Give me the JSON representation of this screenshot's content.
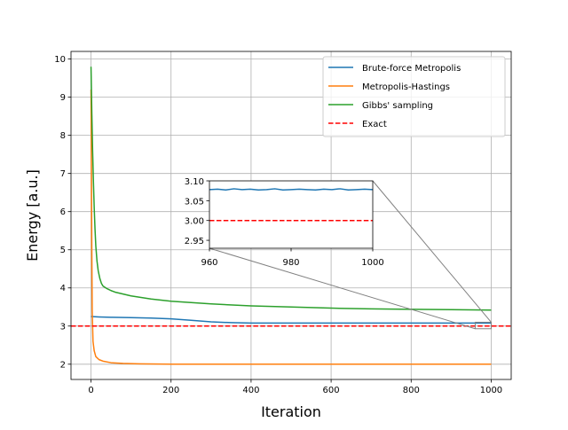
{
  "chart_data": {
    "type": "line",
    "xlabel": "Iteration",
    "ylabel": "Energy [a.u.]",
    "xlim": [
      -50,
      1050
    ],
    "ylim": [
      1.6,
      10.2
    ],
    "xticks": [
      "0",
      "200",
      "400",
      "600",
      "800",
      "1000"
    ],
    "yticks": [
      "2",
      "3",
      "4",
      "5",
      "6",
      "7",
      "8",
      "9",
      "10"
    ],
    "grid": true,
    "legend_position": "top-right",
    "series": [
      {
        "name": "Brute-force Metropolis",
        "color": "#1f77b4",
        "style": "solid",
        "x": [
          0,
          20,
          50,
          100,
          150,
          200,
          250,
          300,
          350,
          400,
          500,
          600,
          700,
          800,
          900,
          1000
        ],
        "y": [
          3.25,
          3.24,
          3.23,
          3.22,
          3.21,
          3.19,
          3.15,
          3.11,
          3.09,
          3.08,
          3.08,
          3.08,
          3.08,
          3.08,
          3.08,
          3.08
        ]
      },
      {
        "name": "Metropolis-Hastings",
        "color": "#ff7f0e",
        "style": "solid",
        "x": [
          0,
          1,
          2,
          3,
          5,
          8,
          12,
          20,
          30,
          50,
          80,
          120,
          200,
          400,
          600,
          800,
          1000
        ],
        "y": [
          9.2,
          7.2,
          5.0,
          3.4,
          2.6,
          2.35,
          2.2,
          2.12,
          2.08,
          2.04,
          2.02,
          2.01,
          2.0,
          2.0,
          2.0,
          2.0,
          2.0
        ]
      },
      {
        "name": "Gibbs' sampling",
        "color": "#2ca02c",
        "style": "solid",
        "x": [
          0,
          2,
          4,
          6,
          8,
          10,
          12,
          15,
          18,
          22,
          26,
          30,
          40,
          50,
          60,
          80,
          100,
          150,
          200,
          300,
          400,
          500,
          600,
          700,
          800,
          900,
          1000
        ],
        "y": [
          9.8,
          8.6,
          7.6,
          6.8,
          6.1,
          5.55,
          5.1,
          4.7,
          4.45,
          4.25,
          4.12,
          4.05,
          3.98,
          3.93,
          3.89,
          3.84,
          3.79,
          3.71,
          3.65,
          3.58,
          3.53,
          3.5,
          3.47,
          3.45,
          3.44,
          3.43,
          3.42
        ]
      },
      {
        "name": "Exact",
        "color": "#ff0000",
        "style": "dashed",
        "x": [
          -50,
          1050
        ],
        "y": [
          3.0,
          3.0
        ]
      }
    ],
    "inset": {
      "xlim": [
        960,
        1000
      ],
      "ylim": [
        2.93,
        3.1
      ],
      "xticks": [
        "960",
        "980",
        "1000"
      ],
      "yticks": [
        "2.95",
        "3.00",
        "3.05",
        "3.10"
      ],
      "series": [
        {
          "name": "Brute-force Metropolis",
          "color": "#1f77b4",
          "style": "solid",
          "x": [
            960,
            962,
            964,
            966,
            968,
            970,
            972,
            974,
            976,
            978,
            980,
            982,
            984,
            986,
            988,
            990,
            992,
            994,
            996,
            998,
            1000
          ],
          "y": [
            3.078,
            3.079,
            3.077,
            3.08,
            3.078,
            3.079,
            3.077,
            3.078,
            3.08,
            3.077,
            3.078,
            3.079,
            3.078,
            3.077,
            3.079,
            3.078,
            3.08,
            3.077,
            3.078,
            3.079,
            3.078
          ]
        },
        {
          "name": "Exact",
          "color": "#ff0000",
          "style": "dashed",
          "x": [
            960,
            1000
          ],
          "y": [
            3.0,
            3.0
          ]
        }
      ]
    }
  }
}
